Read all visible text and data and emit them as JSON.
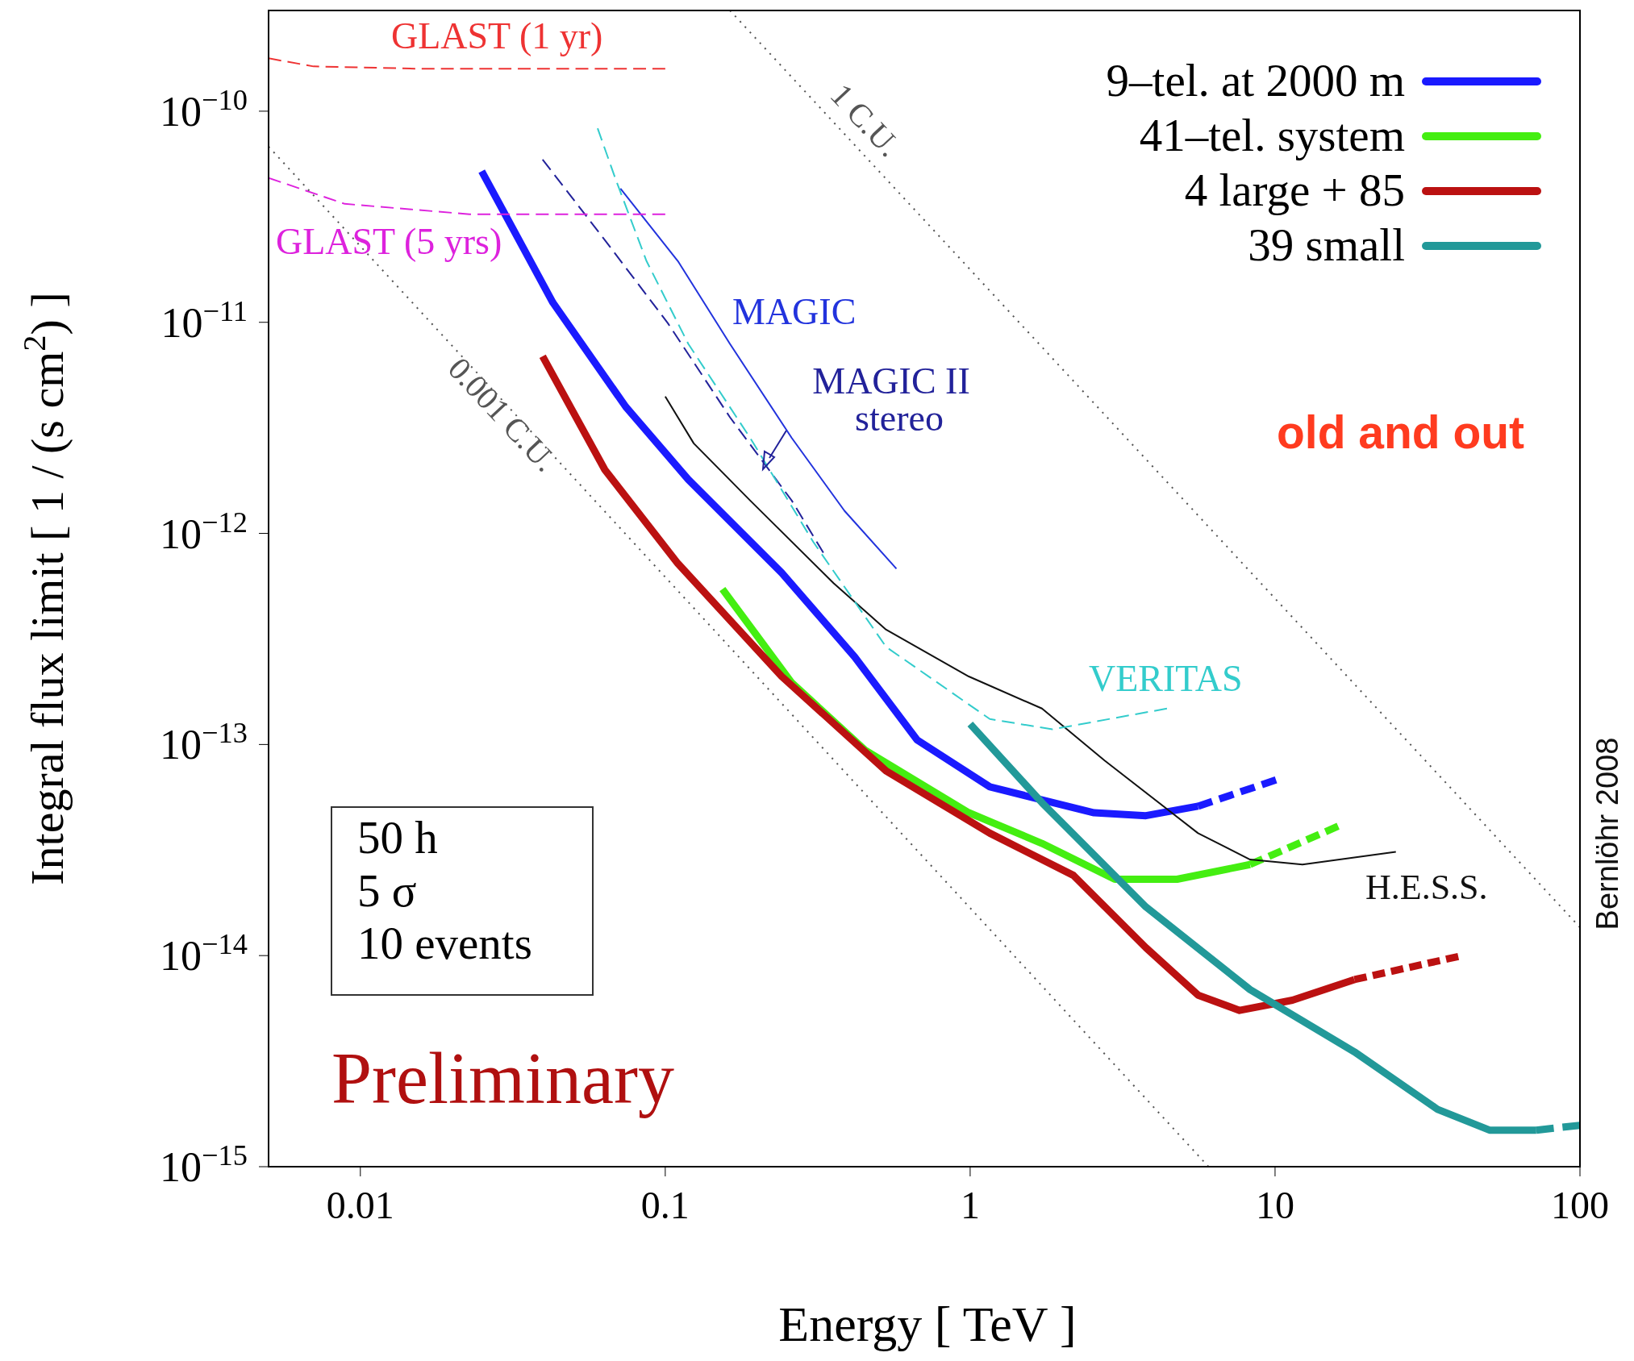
{
  "chart_data": {
    "type": "line",
    "xlabel": "Energy  [ TeV ]",
    "ylabel": "Integral flux limit  [ 1 / (s cm$^{2}$) ]",
    "log": "xy",
    "xlim": [
      0.005,
      100
    ],
    "ylim": [
      1e-15,
      3e-10
    ],
    "xticks": [
      0.01,
      0.1,
      1,
      10,
      100
    ],
    "yticks": [
      {
        "value": 1e-15,
        "label": "10$^{−15}$"
      },
      {
        "value": 1e-14,
        "label": "10$^{−14}$"
      },
      {
        "value": 1e-13,
        "label": "10$^{−13}$"
      },
      {
        "value": 1e-12,
        "label": "10$^{−12}$"
      },
      {
        "value": 1e-11,
        "label": "10$^{−11}$"
      },
      {
        "value": 1e-10,
        "label": "10$^{−10}$"
      }
    ],
    "legend": "top right",
    "marker": "none",
    "series": [
      {
        "name": "9–tel. at 2000 m",
        "color": "#1a1aff",
        "line_style": "solid",
        "x": [
          0.025,
          0.0428,
          0.0742,
          0.119,
          0.241,
          0.418,
          0.67,
          1.16,
          2.55,
          3.77,
          5.59
        ],
        "values": [
          5.2e-11,
          1.24e-11,
          3.98e-12,
          1.8e-12,
          6.5e-13,
          2.6e-13,
          1.05e-13,
          6.3e-14,
          4.75e-14,
          4.6e-14,
          5.1e-14
        ]
      },
      {
        "name": "41–tel. system",
        "color": "#44ee11",
        "line_style": "solid",
        "x": [
          0.154,
          0.26,
          0.452,
          0.99,
          1.72,
          2.98,
          4.77,
          8.28
        ],
        "values": [
          5.45e-13,
          1.96e-13,
          9.4e-14,
          4.75e-14,
          3.4e-14,
          2.3e-14,
          2.3e-14,
          2.7e-14
        ]
      },
      {
        "name": "4 large + 85",
        "color": "#bb1111",
        "line_style": "solid",
        "x": [
          0.0396,
          0.0634,
          0.11,
          0.241,
          0.53,
          1.16,
          2.18,
          3.77,
          5.59,
          7.65,
          11.4,
          18.2
        ],
        "values": [
          6.9e-12,
          2e-12,
          7.2e-13,
          2.1e-13,
          7.5e-14,
          3.8e-14,
          2.4e-14,
          1.09e-14,
          6.5e-15,
          5.5e-15,
          6.15e-15,
          7.7e-15
        ]
      },
      {
        "name": "39 small",
        "color": "#229999",
        "line_style": "solid",
        "x": [
          1.0,
          1.72,
          3.77,
          8.28,
          18.2,
          34.1,
          50.5,
          71.9
        ],
        "values": [
          1.25e-13,
          5.3e-14,
          1.7e-14,
          6.9e-15,
          3.5e-15,
          1.87e-15,
          1.49e-15,
          1.49e-15
        ]
      },
      {
        "color": "#1a1aff",
        "line_style": "dashed",
        "x": [
          5.59,
          10.07
        ],
        "values": [
          5.1e-14,
          6.8e-14
        ]
      },
      {
        "color": "#44ee11",
        "line_style": "dashed",
        "x": [
          8.28,
          16.1
        ],
        "values": [
          2.7e-14,
          4.1e-14
        ]
      },
      {
        "color": "#bb1111",
        "line_style": "dashed",
        "x": [
          18.2,
          39.9
        ],
        "values": [
          7.7e-15,
          9.9e-15
        ]
      },
      {
        "color": "#229999",
        "line_style": "dashed",
        "x": [
          71.9,
          100
        ],
        "values": [
          1.49e-15,
          1.57e-15
        ]
      },
      {
        "name": "H.E.S.S.",
        "color": "#111111",
        "line_style": "solid",
        "x": [
          0.1,
          0.124,
          0.19,
          0.357,
          0.53,
          0.99,
          1.72,
          2.76,
          5.59,
          8.28,
          12.3,
          24.9
        ],
        "values": [
          4.45e-12,
          2.67e-12,
          1.43e-12,
          5.8e-13,
          3.5e-13,
          2.1e-13,
          1.48e-13,
          8.4e-14,
          3.8e-14,
          2.85e-14,
          2.7e-14,
          3.1e-14
        ]
      },
      {
        "name": "MAGIC",
        "color": "#2233dd",
        "line_style": "solid",
        "x": [
          0.0713,
          0.11,
          0.163,
          0.26,
          0.387,
          0.573
        ],
        "values": [
          4.3e-11,
          1.95e-11,
          7.9e-12,
          2.83e-12,
          1.28e-12,
          6.8e-13
        ]
      },
      {
        "name": "MAGIC II stereo",
        "color": "#22229a",
        "line_style": "dashed",
        "x": [
          0.0396,
          0.0634,
          0.102,
          0.163,
          0.26,
          0.33
        ],
        "values": [
          5.9e-11,
          2.45e-11,
          9.9e-12,
          3.55e-12,
          1.43e-12,
          8.1e-13
        ]
      },
      {
        "name": "VERITAS",
        "color": "#33cccc",
        "line_style": "dashed",
        "x": [
          0.06,
          0.0686,
          0.0868,
          0.119,
          0.19,
          0.306,
          0.53,
          1.16,
          1.86,
          4.42
        ],
        "values": [
          8.3e-11,
          4.8e-11,
          1.95e-11,
          7.9e-12,
          2.83e-12,
          9.1e-13,
          2.9e-13,
          1.32e-13,
          1.18e-13,
          1.48e-13
        ]
      },
      {
        "name": "GLAST (1 yr)",
        "color": "#ee3333",
        "line_style": "dashed",
        "x": [
          0.005,
          0.00702,
          0.0154,
          0.1
        ],
        "values": [
          1.78e-10,
          1.63e-10,
          1.59e-10,
          1.59e-10
        ]
      },
      {
        "name": "GLAST (5 yrs)",
        "color": "#dd22dd",
        "line_style": "dashed",
        "x": [
          0.005,
          0.00889,
          0.0228,
          0.1
        ],
        "values": [
          4.83e-11,
          3.64e-11,
          3.25e-11,
          3.25e-11
        ]
      },
      {
        "name": "1 C.U.",
        "color": "#555555",
        "line_style": "dotted",
        "x": [
          0.163,
          100
        ],
        "values": [
          3e-10,
          1.36e-14
        ]
      },
      {
        "name": "0.001 C.U.",
        "color": "#555555",
        "line_style": "dotted",
        "x": [
          0.005,
          6.05
        ],
        "values": [
          6.8e-11,
          1e-15
        ]
      }
    ],
    "annotations": [
      "50 h\n5 σ\n10 events",
      "Preliminary",
      "old and out",
      "Bernlöhr 2008"
    ]
  }
}
